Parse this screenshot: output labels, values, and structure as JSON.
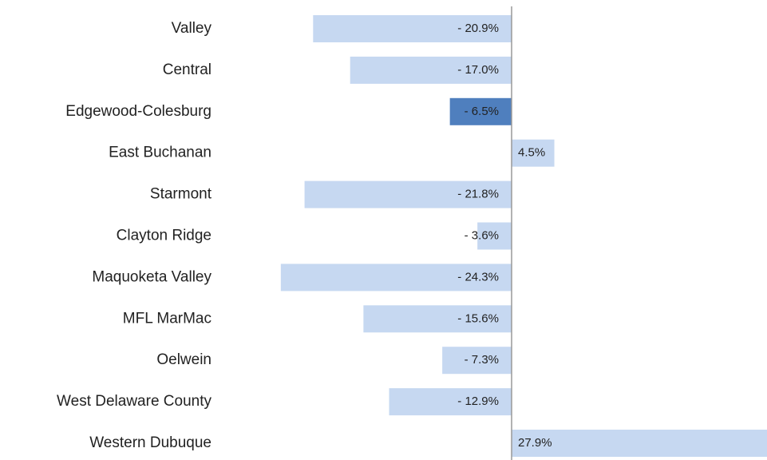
{
  "chart_data": {
    "type": "bar",
    "orientation": "horizontal",
    "categories": [
      "Valley",
      "Central",
      "Edgewood-Colesburg",
      "East Buchanan",
      "Starmont",
      "Clayton Ridge",
      "Maquoketa Valley",
      "MFL MarMac",
      "Oelwein",
      "West Delaware County",
      "Western Dubuque"
    ],
    "values": [
      -20.9,
      -17.0,
      -6.5,
      4.5,
      -21.8,
      -3.6,
      -24.3,
      -15.6,
      -7.3,
      -12.9,
      27.9
    ],
    "value_labels": [
      "- 20.9%",
      "- 17.0%",
      "- 6.5%",
      "4.5%",
      "- 21.8%",
      "- 3.6%",
      "- 24.3%",
      "- 15.6%",
      "- 7.3%",
      "- 12.9%",
      "27.9%"
    ],
    "colors": [
      "#c6d8f1",
      "#c6d8f1",
      "#4f7fbe",
      "#c6d8f1",
      "#c6d8f1",
      "#c6d8f1",
      "#c6d8f1",
      "#c6d8f1",
      "#c6d8f1",
      "#c6d8f1",
      "#c6d8f1"
    ]
  }
}
